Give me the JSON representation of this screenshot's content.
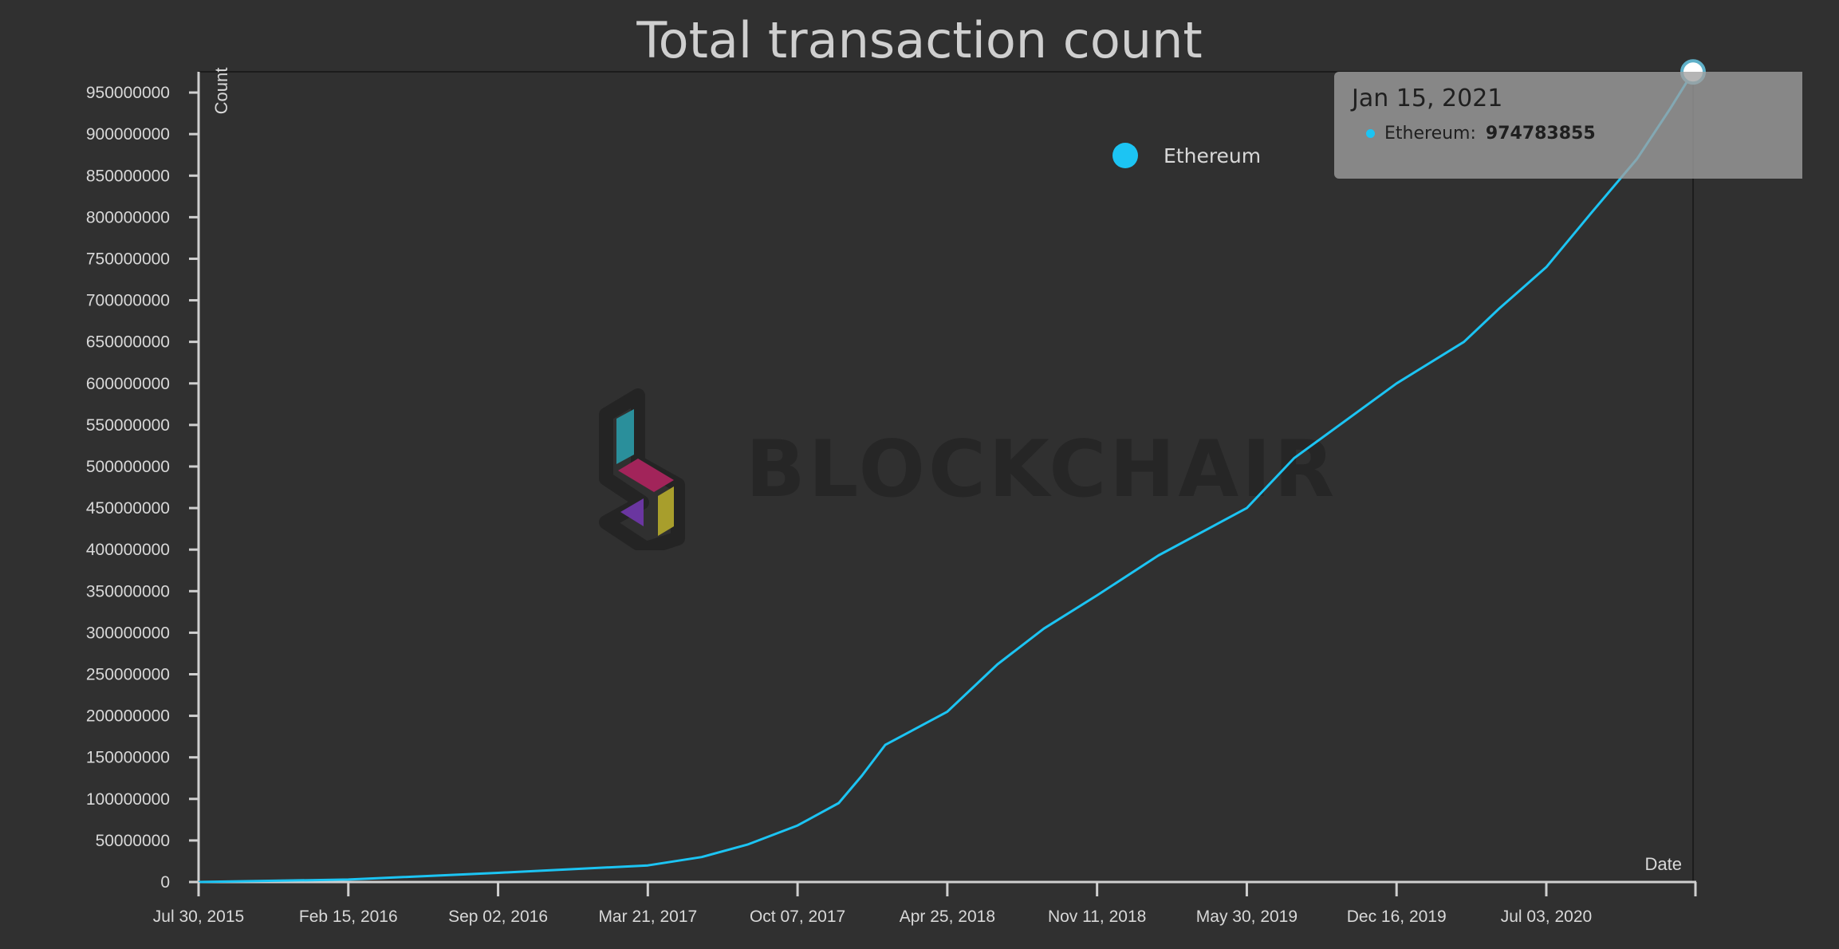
{
  "colors": {
    "background": "#303030",
    "series": "#1cc4f3",
    "axis": "#cfcfcf",
    "text": "#d8d8d8",
    "tooltip_bg": "#a0a0a0"
  },
  "tooltip": {
    "date": "Jan 15, 2021",
    "series_label": "Ethereum:",
    "value": "974783855"
  },
  "watermark": {
    "text": "BLOCKCHAIR"
  },
  "chart_data": {
    "type": "line",
    "title": "Total transaction count",
    "xlabel": "Date",
    "ylabel": "Count",
    "x_axis": "date",
    "xlim": [
      "2015-07-30",
      "2021-01-15"
    ],
    "ylim": [
      0,
      975000000
    ],
    "x_ticks": [
      "Jul 30, 2015",
      "Feb 15, 2016",
      "Sep 02, 2016",
      "Mar 21, 2017",
      "Oct 07, 2017",
      "Apr 25, 2018",
      "Nov 11, 2018",
      "May 30, 2019",
      "Dec 16, 2019",
      "Jul 03, 2020"
    ],
    "x_tick_dates": [
      "2015-07-30",
      "2016-02-15",
      "2016-09-02",
      "2017-03-21",
      "2017-10-07",
      "2018-04-25",
      "2018-11-11",
      "2019-05-30",
      "2019-12-16",
      "2020-07-03"
    ],
    "y_ticks": [
      0,
      50000000,
      100000000,
      150000000,
      200000000,
      250000000,
      300000000,
      350000000,
      400000000,
      450000000,
      500000000,
      550000000,
      600000000,
      650000000,
      700000000,
      750000000,
      800000000,
      850000000,
      900000000,
      950000000
    ],
    "legend": {
      "position": "top-right"
    },
    "grid": false,
    "series": [
      {
        "name": "Ethereum",
        "color": "#1cc4f3",
        "x": [
          "2015-07-30",
          "2016-02-15",
          "2016-09-02",
          "2017-03-21",
          "2017-06-01",
          "2017-08-01",
          "2017-10-07",
          "2017-12-01",
          "2018-01-01",
          "2018-02-01",
          "2018-04-25",
          "2018-07-01",
          "2018-09-01",
          "2018-11-11",
          "2019-02-01",
          "2019-05-30",
          "2019-08-01",
          "2019-12-16",
          "2020-03-15",
          "2020-05-01",
          "2020-07-03",
          "2020-09-01",
          "2020-11-01",
          "2020-12-15",
          "2021-01-15"
        ],
        "values": [
          0,
          3000000,
          11000000,
          20000000,
          30000000,
          45000000,
          68000000,
          95000000,
          128000000,
          165000000,
          205000000,
          262000000,
          305000000,
          345000000,
          393000000,
          450000000,
          510000000,
          600000000,
          650000000,
          690000000,
          740000000,
          805000000,
          870000000,
          930000000,
          974783855
        ]
      }
    ]
  }
}
